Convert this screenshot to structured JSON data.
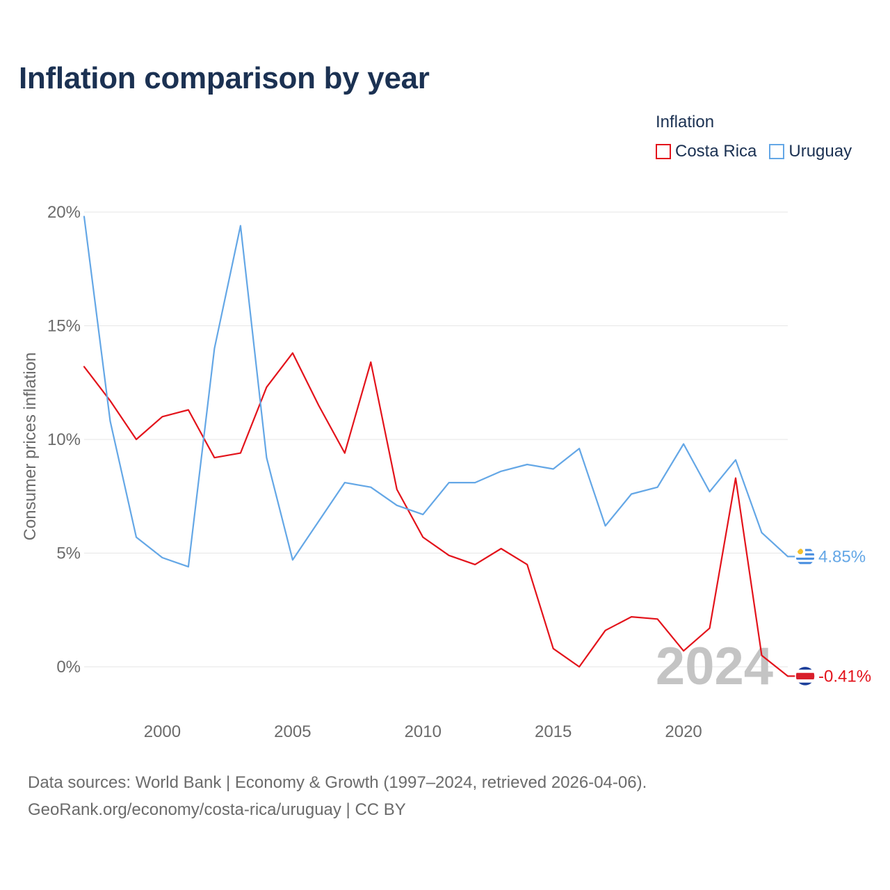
{
  "chart_data": {
    "type": "line",
    "title": "Inflation comparison by year",
    "legend_title": "Inflation",
    "ylabel": "Consumer prices inflation",
    "xlabel": "",
    "x": [
      1997,
      1998,
      1999,
      2000,
      2001,
      2002,
      2003,
      2004,
      2005,
      2006,
      2007,
      2008,
      2009,
      2010,
      2011,
      2012,
      2013,
      2014,
      2015,
      2016,
      2017,
      2018,
      2019,
      2020,
      2021,
      2022,
      2023,
      2024
    ],
    "xlim": [
      1997,
      2024
    ],
    "ylim": [
      0,
      20
    ],
    "x_ticks": [
      2000,
      2005,
      2010,
      2015,
      2020
    ],
    "y_ticks": [
      0,
      5,
      10,
      15,
      20
    ],
    "y_tick_labels": [
      "0%",
      "5%",
      "10%",
      "15%",
      "20%"
    ],
    "watermark_year": "2024",
    "series": [
      {
        "name": "Costa Rica",
        "color": "#e3131b",
        "values": [
          13.2,
          11.7,
          10.0,
          11.0,
          11.3,
          9.2,
          9.4,
          12.3,
          13.8,
          11.5,
          9.4,
          13.4,
          7.8,
          5.7,
          4.9,
          4.5,
          5.2,
          4.5,
          0.8,
          0.0,
          1.6,
          2.2,
          2.1,
          0.7,
          1.7,
          8.3,
          0.5,
          -0.41
        ],
        "end_label": "-0.41%",
        "flag": "costa-rica-flag-icon"
      },
      {
        "name": "Uruguay",
        "color": "#64a7e6",
        "values": [
          19.8,
          10.8,
          5.7,
          4.8,
          4.4,
          14.0,
          19.4,
          9.2,
          4.7,
          6.4,
          8.1,
          7.9,
          7.1,
          6.7,
          8.1,
          8.1,
          8.6,
          8.9,
          8.7,
          9.6,
          6.2,
          7.6,
          7.9,
          9.8,
          7.7,
          9.1,
          5.9,
          4.85
        ],
        "end_label": "4.85%",
        "flag": "uruguay-flag-icon"
      }
    ]
  },
  "footer": {
    "source_line": "Data sources: World Bank | Economy & Growth (1997–2024, retrieved 2026-04-06).",
    "credit_line": "GeoRank.org/economy/costa-rica/uruguay | CC BY"
  }
}
